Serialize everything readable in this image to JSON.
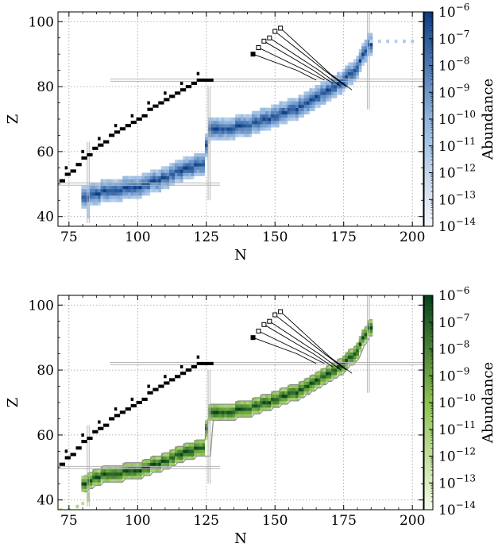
{
  "chart_data": [
    {
      "type": "heatmap",
      "xlabel": "N",
      "ylabel": "Z",
      "xlim": [
        71,
        204
      ],
      "ylim": [
        37,
        103
      ],
      "xticks": [
        75,
        100,
        125,
        150,
        175,
        200
      ],
      "yticks": [
        40,
        60,
        80,
        100
      ],
      "grid": true,
      "colorbar": {
        "label": "Abundance",
        "scale": "log",
        "range": [
          1e-14,
          1e-06
        ],
        "ticks": [
          "10−14",
          "10−13",
          "10−12",
          "10−11",
          "10−10",
          "10−9",
          "10−8",
          "10−7",
          "10−6"
        ],
        "colormap": "blues",
        "color_low": "#f4f8fd",
        "color_mid": "#8fb4de",
        "color_high": "#0b3e86"
      },
      "path_center": [
        [
          81,
          46
        ],
        [
          84,
          47
        ],
        [
          90,
          48
        ],
        [
          100,
          49
        ],
        [
          110,
          52
        ],
        [
          118,
          55
        ],
        [
          124,
          56
        ],
        [
          126,
          67
        ],
        [
          132,
          67
        ],
        [
          140,
          68
        ],
        [
          150,
          71
        ],
        [
          160,
          74
        ],
        [
          166,
          77
        ],
        [
          175,
          82
        ],
        [
          180,
          86
        ],
        [
          184,
          93
        ]
      ],
      "path_halfwidth": 3,
      "extra_cells": [
        [
          185,
          94
        ],
        [
          188,
          94
        ],
        [
          191,
          94
        ],
        [
          194,
          94
        ],
        [
          197,
          94
        ],
        [
          200,
          94
        ],
        [
          82,
          40
        ],
        [
          82,
          41
        ],
        [
          82,
          42
        ],
        [
          82,
          43
        ],
        [
          82,
          44
        ]
      ],
      "stable_cells": [
        [
          72,
          51
        ],
        [
          74,
          53
        ],
        [
          76,
          54
        ],
        [
          78,
          56
        ],
        [
          80,
          58
        ],
        [
          82,
          59
        ],
        [
          84,
          61
        ],
        [
          86,
          62
        ],
        [
          88,
          63
        ],
        [
          90,
          65
        ],
        [
          92,
          66
        ],
        [
          94,
          67
        ],
        [
          96,
          68
        ],
        [
          98,
          69
        ],
        [
          100,
          70
        ],
        [
          102,
          71
        ],
        [
          104,
          73
        ],
        [
          106,
          74
        ],
        [
          108,
          75
        ],
        [
          110,
          76
        ],
        [
          112,
          77
        ],
        [
          114,
          78
        ],
        [
          116,
          79
        ],
        [
          118,
          80
        ],
        [
          120,
          81
        ],
        [
          122,
          82
        ],
        [
          124,
          82
        ],
        [
          126,
          82
        ]
      ],
      "decay_starts": [
        [
          142,
          90
        ],
        [
          144,
          92
        ],
        [
          146,
          94
        ],
        [
          148,
          95
        ],
        [
          150,
          97
        ],
        [
          152,
          98
        ]
      ],
      "decay_ends": [
        [
          165,
          82
        ],
        [
          168,
          82
        ],
        [
          171,
          81
        ],
        [
          174,
          80
        ],
        [
          176,
          80
        ],
        [
          178,
          79
        ]
      ],
      "decay_bends": [
        [
          158,
          85
        ],
        [
          161,
          85
        ],
        [
          164,
          85
        ],
        [
          166,
          85
        ],
        [
          168,
          85
        ],
        [
          170,
          84
        ]
      ],
      "magic_lines": [
        {
          "axis": "x",
          "value": 82,
          "from": 38,
          "to": 63
        },
        {
          "axis": "x",
          "value": 126,
          "from": 45,
          "to": 80
        },
        {
          "axis": "x",
          "value": 184,
          "from": 73,
          "to": 103
        },
        {
          "axis": "y",
          "value": 50,
          "from": 71,
          "to": 130
        },
        {
          "axis": "y",
          "value": 82,
          "from": 90,
          "to": 204
        }
      ],
      "show_contour": false
    },
    {
      "type": "heatmap",
      "xlabel": "N",
      "ylabel": "Z",
      "xlim": [
        71,
        204
      ],
      "ylim": [
        37,
        103
      ],
      "xticks": [
        75,
        100,
        125,
        150,
        175,
        200
      ],
      "yticks": [
        40,
        60,
        80,
        100
      ],
      "grid": true,
      "colorbar": {
        "label": "Abundance",
        "scale": "log",
        "range": [
          1e-14,
          1e-06
        ],
        "ticks": [
          "10−14",
          "10−13",
          "10−12",
          "10−11",
          "10−10",
          "10−9",
          "10−8",
          "10−7",
          "10−6"
        ],
        "colormap": "greens",
        "color_low": "#f4fbe8",
        "color_mid": "#8cc34f",
        "color_high": "#05421a"
      },
      "path_center": [
        [
          81,
          45
        ],
        [
          84,
          47
        ],
        [
          90,
          48
        ],
        [
          100,
          49
        ],
        [
          110,
          52
        ],
        [
          118,
          55
        ],
        [
          124,
          56
        ],
        [
          126,
          67
        ],
        [
          132,
          67
        ],
        [
          140,
          68
        ],
        [
          150,
          71
        ],
        [
          160,
          74
        ],
        [
          166,
          77
        ],
        [
          175,
          82
        ],
        [
          180,
          86
        ],
        [
          184,
          93
        ]
      ],
      "path_halfwidth": 2,
      "extra_cells": [
        [
          72,
          37
        ],
        [
          75,
          37
        ],
        [
          78,
          38
        ],
        [
          80,
          39
        ],
        [
          82,
          40
        ],
        [
          82,
          41
        ],
        [
          82,
          42
        ]
      ],
      "stable_cells": [
        [
          72,
          51
        ],
        [
          74,
          53
        ],
        [
          76,
          54
        ],
        [
          78,
          56
        ],
        [
          80,
          58
        ],
        [
          82,
          59
        ],
        [
          84,
          61
        ],
        [
          86,
          62
        ],
        [
          88,
          63
        ],
        [
          90,
          65
        ],
        [
          92,
          66
        ],
        [
          94,
          67
        ],
        [
          96,
          68
        ],
        [
          98,
          69
        ],
        [
          100,
          70
        ],
        [
          102,
          71
        ],
        [
          104,
          73
        ],
        [
          106,
          74
        ],
        [
          108,
          75
        ],
        [
          110,
          76
        ],
        [
          112,
          77
        ],
        [
          114,
          78
        ],
        [
          116,
          79
        ],
        [
          118,
          80
        ],
        [
          120,
          81
        ],
        [
          122,
          82
        ],
        [
          124,
          82
        ],
        [
          126,
          82
        ]
      ],
      "decay_starts": [
        [
          142,
          90
        ],
        [
          144,
          92
        ],
        [
          146,
          94
        ],
        [
          148,
          95
        ],
        [
          150,
          97
        ],
        [
          152,
          98
        ]
      ],
      "decay_ends": [
        [
          165,
          82
        ],
        [
          168,
          82
        ],
        [
          171,
          81
        ],
        [
          174,
          80
        ],
        [
          176,
          80
        ],
        [
          178,
          79
        ]
      ],
      "decay_bends": [
        [
          158,
          85
        ],
        [
          161,
          85
        ],
        [
          164,
          85
        ],
        [
          166,
          85
        ],
        [
          168,
          85
        ],
        [
          170,
          84
        ]
      ],
      "magic_lines": [
        {
          "axis": "x",
          "value": 82,
          "from": 38,
          "to": 63
        },
        {
          "axis": "x",
          "value": 126,
          "from": 45,
          "to": 80
        },
        {
          "axis": "x",
          "value": 184,
          "from": 73,
          "to": 103
        },
        {
          "axis": "y",
          "value": 50,
          "from": 71,
          "to": 130
        },
        {
          "axis": "y",
          "value": 82,
          "from": 90,
          "to": 204
        }
      ],
      "show_contour": true
    }
  ]
}
